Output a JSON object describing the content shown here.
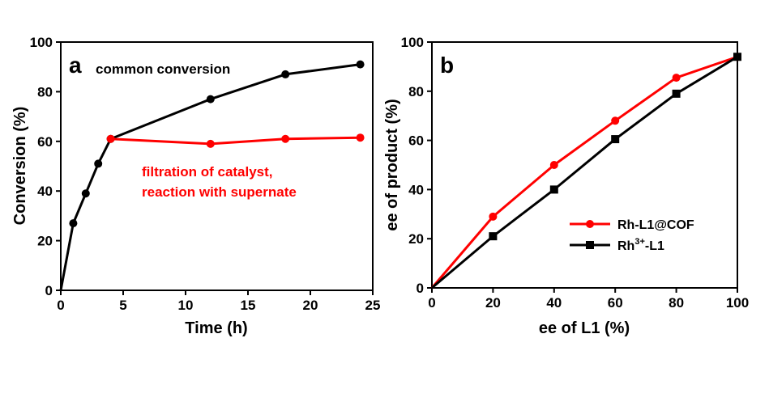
{
  "chart_data": [
    {
      "type": "line",
      "panel_label": "a",
      "xlabel": "Time (h)",
      "ylabel": "Conversion (%)",
      "xlim": [
        0,
        25
      ],
      "ylim": [
        0,
        100
      ],
      "xticks": [
        0,
        5,
        10,
        15,
        20,
        25
      ],
      "yticks": [
        0,
        20,
        40,
        60,
        80,
        100
      ],
      "series": [
        {
          "name": "common conversion",
          "color": "#000000",
          "marker": "circle",
          "x": [
            0,
            1,
            2,
            3,
            4,
            12,
            18,
            24
          ],
          "y": [
            0,
            27,
            39,
            51,
            61,
            77,
            87,
            91
          ]
        },
        {
          "name": "filtration of catalyst, reaction with supernate",
          "color": "#ff0000",
          "marker": "circle",
          "x": [
            4,
            12,
            18,
            24
          ],
          "y": [
            61,
            59,
            61,
            61.5
          ]
        }
      ],
      "annotations": [
        {
          "text": "common conversion",
          "color": "#000000"
        },
        {
          "text": "filtration of catalyst,",
          "color": "#ff0000"
        },
        {
          "text": "reaction with supernate",
          "color": "#ff0000"
        }
      ]
    },
    {
      "type": "line",
      "panel_label": "b",
      "xlabel": "ee of L1 (%)",
      "ylabel": "ee of product (%)",
      "xlim": [
        0,
        100
      ],
      "ylim": [
        0,
        100
      ],
      "xticks": [
        0,
        20,
        40,
        60,
        80,
        100
      ],
      "yticks": [
        0,
        20,
        40,
        60,
        80,
        100
      ],
      "legend_position": "bottom-right",
      "series": [
        {
          "name": "Rh-L1@COF",
          "color": "#ff0000",
          "marker": "circle",
          "x": [
            0,
            20,
            40,
            60,
            80,
            100
          ],
          "y": [
            0,
            29,
            50,
            68,
            85.5,
            94
          ]
        },
        {
          "name": "Rh3+-L1",
          "legend_parts": {
            "base": "Rh",
            "sup": "3+",
            "suffix": "-L1"
          },
          "color": "#000000",
          "marker": "square",
          "x": [
            0,
            20,
            40,
            60,
            80,
            100
          ],
          "y": [
            0,
            21,
            40,
            60.5,
            79,
            94
          ]
        }
      ]
    }
  ]
}
